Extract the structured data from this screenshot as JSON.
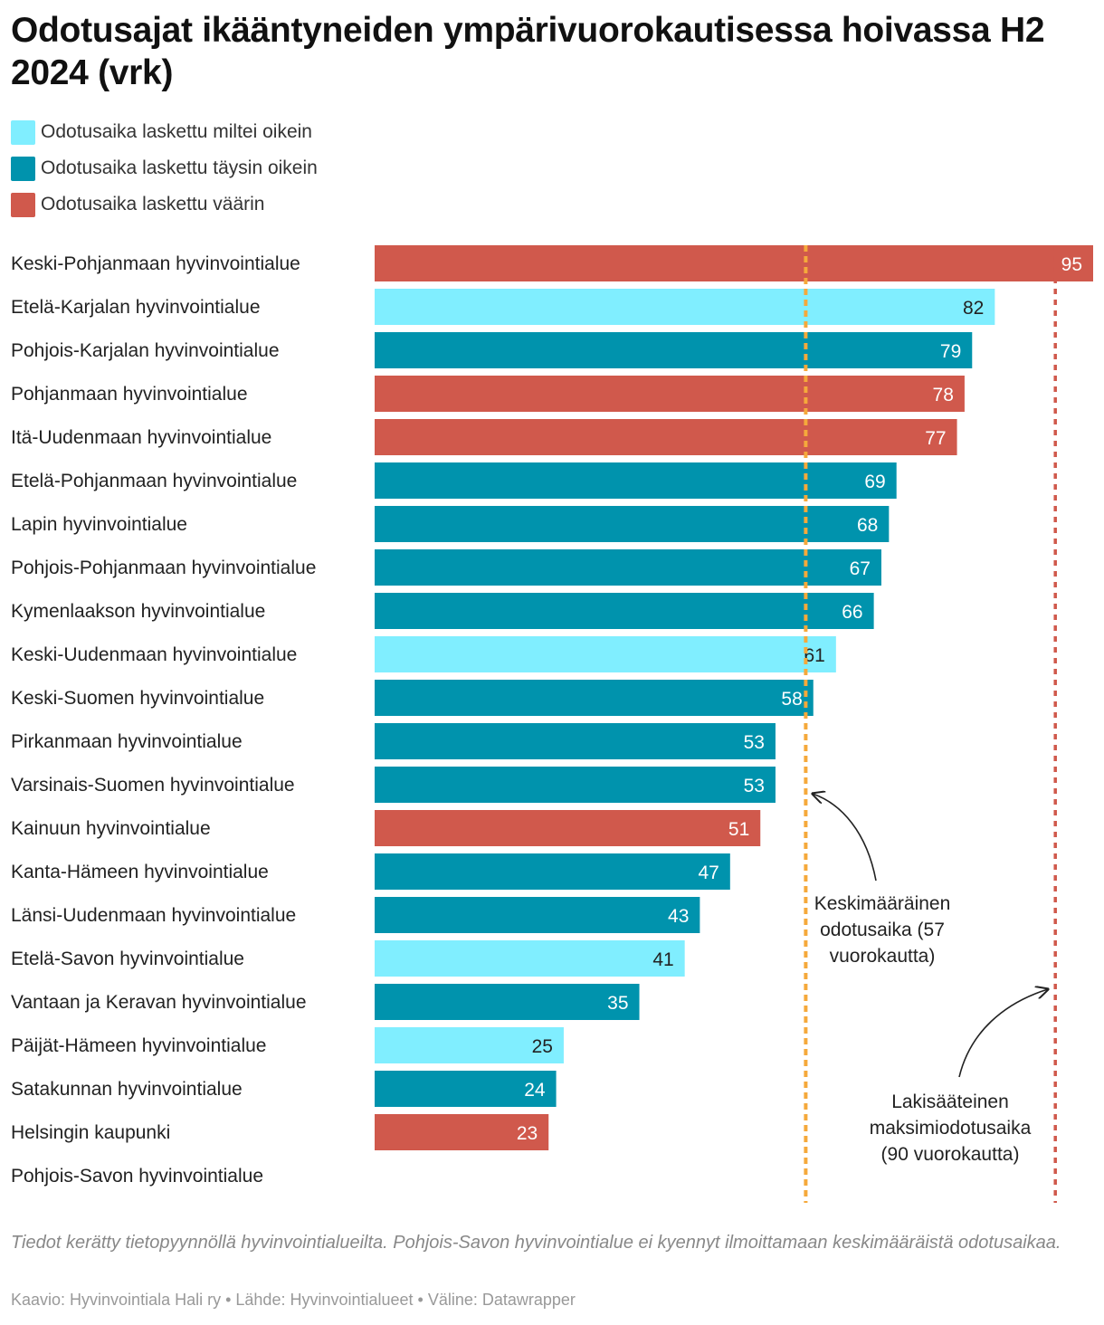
{
  "title": "Odotusajat ikääntyneiden ympärivuorokautisessa hoivassa H2 2024 (vrk)",
  "legend": [
    {
      "label": "Odotusaika laskettu miltei oikein",
      "color": "#80eeff"
    },
    {
      "label": "Odotusaika laskettu täysin oikein",
      "color": "#0093ad"
    },
    {
      "label": "Odotusaika laskettu väärin",
      "color": "#d0594c"
    }
  ],
  "chart_data": {
    "type": "bar",
    "orientation": "horizontal",
    "xlim": [
      0,
      95
    ],
    "categories": [
      "Keski-Pohjanmaan hyvinvointialue",
      "Etelä-Karjalan hyvinvointialue",
      "Pohjois-Karjalan hyvinvointialue",
      "Pohjanmaan hyvinvointialue",
      "Itä-Uudenmaan hyvinvointialue",
      "Etelä-Pohjanmaan hyvinvointialue",
      "Lapin hyvinvointialue",
      "Pohjois-Pohjanmaan hyvinvointialue",
      "Kymenlaakson hyvinvointialue",
      "Keski-Uudenmaan hyvinvointialue",
      "Keski-Suomen hyvinvointialue",
      "Pirkanmaan hyvinvointialue",
      "Varsinais-Suomen hyvinvointialue",
      "Kainuun hyvinvointialue",
      "Kanta-Hämeen hyvinvointialue",
      "Länsi-Uudenmaan hyvinvointialue",
      "Etelä-Savon hyvinvointialue",
      "Vantaan ja Keravan hyvinvointialue",
      "Päijät-Hämeen hyvinvointialue",
      "Satakunnan hyvinvointialue",
      "Helsingin kaupunki",
      "Pohjois-Savon hyvinvointialue"
    ],
    "values": [
      95,
      82,
      79,
      78,
      77,
      69,
      68,
      67,
      66,
      61,
      58,
      53,
      53,
      51,
      47,
      43,
      41,
      35,
      25,
      24,
      23,
      null
    ],
    "status": [
      2,
      0,
      1,
      2,
      2,
      1,
      1,
      1,
      1,
      0,
      1,
      1,
      1,
      2,
      1,
      1,
      0,
      1,
      0,
      1,
      2,
      null
    ],
    "reference_lines": [
      {
        "value": 57,
        "color": "#f5a93b",
        "label": [
          "Keskimääräinen",
          "odotusaika (57",
          "vuorokautta)"
        ]
      },
      {
        "value": 90,
        "color": "#d0594c",
        "label": [
          "Lakisääteinen",
          "maksimiodotusaika",
          "(90 vuorokautta)"
        ]
      }
    ]
  },
  "notes": "Tiedot kerätty tietopyynnöllä hyvinvointialueilta. Pohjois-Savon hyvinvointialue ei kyennyt ilmoittamaan keskimääräistä odotusaikaa.",
  "byline": "Kaavio: Hyvinvointiala Hali ry • Lähde: Hyvinvointialueet • Väline: Datawrapper"
}
